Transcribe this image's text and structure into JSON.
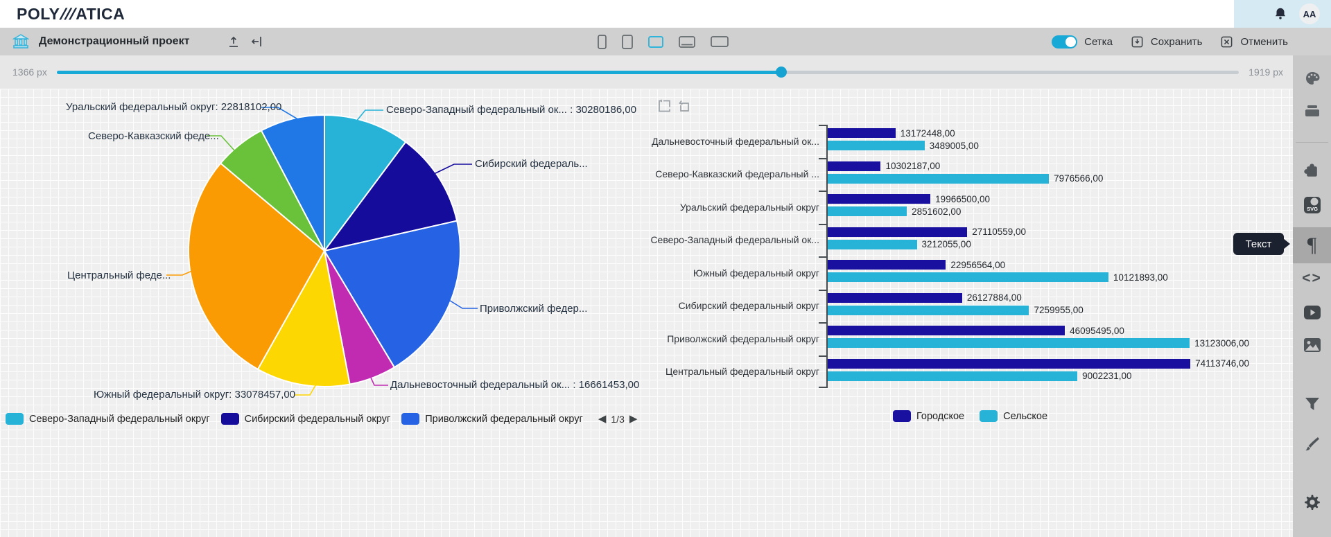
{
  "header": {
    "logo_left": "POLY",
    "logo_slashes": "///",
    "logo_right": "ATICA",
    "avatar_initials": "AA"
  },
  "toolbar": {
    "project_title": "Демонстрационный проект",
    "grid_toggle_label": "Сетка",
    "save_label": "Сохранить",
    "cancel_label": "Отменить",
    "accent_color": "#19a9d7",
    "device_icons": [
      "phone",
      "tablet",
      "laptop",
      "desktop",
      "widescreen"
    ],
    "selected_device": "laptop"
  },
  "slider": {
    "min_label": "1366 px",
    "max_label": "1919 px",
    "value_pct": 61.3,
    "accent_color": "#19a9d7"
  },
  "sidebar": {
    "tooltip": "Текст",
    "icons": [
      "palette",
      "widgets",
      "puzzle",
      "svg",
      "text",
      "code",
      "video",
      "image",
      "filter",
      "brush",
      "settings"
    ],
    "selected": "text"
  },
  "chart_data": [
    {
      "type": "pie",
      "title": "",
      "slices": [
        {
          "label": "Северо-Западный федеральный округ",
          "display": "Северо-Западный федеральный ок... : 30280186,00",
          "value": 30280186,
          "color": "#27b3d8"
        },
        {
          "label": "Сибирский федеральный округ",
          "display": "Сибирский федераль...",
          "value": 33387839,
          "color": "#150c9c"
        },
        {
          "label": "Приволжский федеральный округ",
          "display": "Приволжский федер...",
          "value": 59218501,
          "color": "#2563e4"
        },
        {
          "label": "Дальневосточный федеральный округ",
          "display": "Дальневосточный федеральный ок... : 16661453,00",
          "value": 16661453,
          "color": "#c02bb2"
        },
        {
          "label": "Южный федеральный округ",
          "display": "Южный федеральный округ: 33078457,00",
          "value": 33078457,
          "color": "#fdd702"
        },
        {
          "label": "Центральный федеральный округ",
          "display": "Центральный феде...",
          "value": 83115977,
          "color": "#fb9b03"
        },
        {
          "label": "Северо-Кавказский федеральный округ",
          "display": "Северо-Кавказский феде...",
          "value": 18278753,
          "color": "#69c23a"
        },
        {
          "label": "Уральский федеральный округ",
          "display": "Уральский федеральный округ: 22818102,00",
          "value": 22818102,
          "color": "#1f78e6"
        }
      ],
      "legend": {
        "items": [
          {
            "label": "Северо-Западный федеральный округ",
            "color": "#27b3d8"
          },
          {
            "label": "Сибирский федеральный округ",
            "color": "#150c9c"
          },
          {
            "label": "Приволжский федеральный округ",
            "color": "#2563e4"
          }
        ],
        "pager": "1/3",
        "pager_prev": "◀",
        "pager_next": "▶"
      }
    },
    {
      "type": "bar",
      "orientation": "horizontal",
      "categories": [
        "Дальневосточный федеральный ок...",
        "Северо-Кавказский федеральный ...",
        "Уральский федеральный округ",
        "Северо-Западный федеральный ок...",
        "Южный федеральный округ",
        "Сибирский федеральный округ",
        "Приволжский федеральный округ",
        "Центральный федеральный округ"
      ],
      "series": [
        {
          "name": "Городское",
          "color": "#1a10a0",
          "values": [
            13172448,
            10302187,
            19966500,
            27110559,
            22956564,
            26127884,
            46095495,
            74113746
          ],
          "value_labels": [
            "13172448,00",
            "10302187,00",
            "19966500,00",
            "27110559,00",
            "22956564,00",
            "26127884,00",
            "46095495,00",
            "74113746,00"
          ]
        },
        {
          "name": "Сельское",
          "color": "#27b3d8",
          "values": [
            3489005,
            7976566,
            2851602,
            3212055,
            10121893,
            7259955,
            13123006,
            9002231
          ],
          "value_labels": [
            "3489005,00",
            "7976566,00",
            "2851602,00",
            "3212055,00",
            "10121893,00",
            "7259955,00",
            "13123006,00",
            "9002231,00"
          ]
        }
      ]
    }
  ]
}
